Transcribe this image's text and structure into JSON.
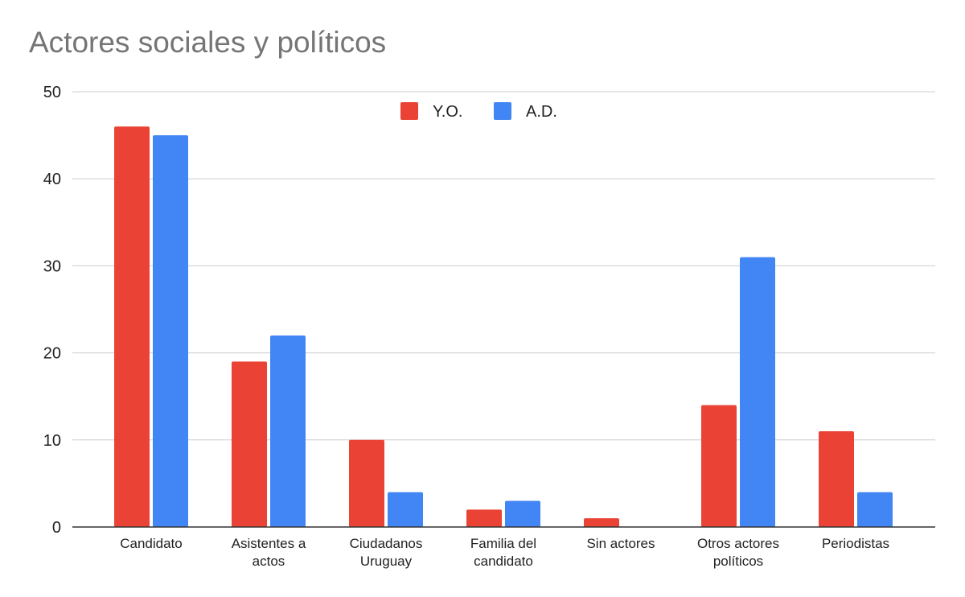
{
  "chart_data": {
    "type": "bar",
    "title": "Actores sociales y políticos",
    "categories": [
      [
        "Candidato"
      ],
      [
        "Asistentes a",
        "actos"
      ],
      [
        "Ciudadanos",
        "Uruguay"
      ],
      [
        "Familia del",
        "candidato"
      ],
      [
        "Sin actores"
      ],
      [
        "Otros actores",
        "políticos"
      ],
      [
        "Periodistas"
      ]
    ],
    "series": [
      {
        "name": "Y.O.",
        "color": "#ea4335",
        "values": [
          46,
          19,
          10,
          2,
          1,
          14,
          11
        ]
      },
      {
        "name": "A.D.",
        "color": "#4285f4",
        "values": [
          45,
          22,
          4,
          3,
          0,
          31,
          4
        ]
      }
    ],
    "ylim": [
      0,
      50
    ],
    "yticks": [
      0,
      10,
      20,
      30,
      40,
      50
    ],
    "grid": true,
    "legend": "top-center"
  }
}
